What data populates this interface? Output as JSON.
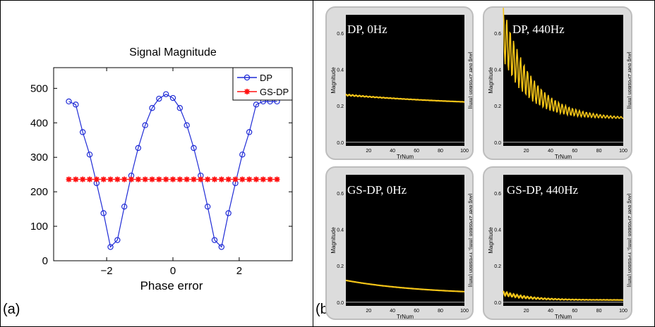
{
  "panel_labels": {
    "a": "(a)",
    "b": "(b)"
  },
  "chart_data": [
    {
      "type": "line",
      "title": "Signal Magnitude",
      "xlabel": "Phase error",
      "ylabel": "",
      "xlim": [
        -3.6,
        3.6
      ],
      "ylim": [
        0,
        560
      ],
      "xticks": [
        -2,
        0,
        2
      ],
      "yticks": [
        0,
        100,
        200,
        300,
        400,
        500
      ],
      "grid": false,
      "legend": "top-right",
      "series": [
        {
          "name": "DP",
          "color": "#1f2bd6",
          "marker": "circle",
          "x": [
            -3.1416,
            -2.9322,
            -2.7227,
            -2.5133,
            -2.3038,
            -2.0944,
            -1.885,
            -1.6755,
            -1.4661,
            -1.2566,
            -1.0472,
            -0.8378,
            -0.6283,
            -0.4189,
            -0.2094,
            0,
            0.2094,
            0.4189,
            0.6283,
            0.8378,
            1.0472,
            1.2566,
            1.4661,
            1.6755,
            1.885,
            2.0944,
            2.3038,
            2.5133,
            2.7227,
            2.9322,
            3.1416
          ],
          "y": [
            462,
            453,
            373,
            308,
            225,
            138,
            40,
            60,
            157,
            247,
            327,
            393,
            443,
            470,
            483,
            472,
            443,
            393,
            327,
            247,
            157,
            60,
            40,
            138,
            225,
            308,
            373,
            453,
            462,
            462,
            462
          ]
        },
        {
          "name": "GS-DP",
          "color": "#ff1010",
          "marker": "star",
          "x": [
            -3.1416,
            -2.9322,
            -2.7227,
            -2.5133,
            -2.3038,
            -2.0944,
            -1.885,
            -1.6755,
            -1.4661,
            -1.2566,
            -1.0472,
            -0.8378,
            -0.6283,
            -0.4189,
            -0.2094,
            0,
            0.2094,
            0.4189,
            0.6283,
            0.8378,
            1.0472,
            1.2566,
            1.4661,
            1.6755,
            1.885,
            2.0944,
            2.3038,
            2.5133,
            2.7227,
            2.9322,
            3.1416
          ],
          "y": [
            236,
            236,
            236,
            236,
            236,
            236,
            236,
            236,
            236,
            236,
            236,
            236,
            236,
            236,
            236,
            236,
            236,
            236,
            236,
            236,
            236,
            236,
            236,
            236,
            236,
            236,
            236,
            236,
            236,
            236,
            236
          ]
        }
      ]
    },
    {
      "type": "line",
      "title": "DP, 0Hz",
      "xlabel": "TrNum",
      "ylabel": "Magnitude",
      "ylabel2": "[Avg over ZPosition (mm)]",
      "xlim": [
        1,
        100
      ],
      "ylim": [
        -0.02,
        0.7
      ],
      "xticks": [
        20,
        40,
        60,
        80,
        100
      ],
      "yticks": [
        0,
        0.2,
        0.4,
        0.6
      ],
      "ytick_labels": [
        "0.0",
        "0.2",
        "0.4",
        "0.6"
      ],
      "line_color": "#f5c518",
      "series": [
        {
          "name": "DP, 0Hz",
          "start": 0.26,
          "end": 0.19,
          "ripple": 0.004,
          "decay": 0.008
        }
      ]
    },
    {
      "type": "line",
      "title": "DP, 440Hz",
      "xlabel": "TrNum",
      "ylabel": "Magnitude",
      "ylabel2": "[Avg over ZPosition (mm)]",
      "xlim": [
        1,
        100
      ],
      "ylim": [
        -0.02,
        0.7
      ],
      "xticks": [
        20,
        40,
        60,
        80,
        100
      ],
      "yticks": [
        0,
        0.2,
        0.4,
        0.6
      ],
      "ytick_labels": [
        "0.0",
        "0.2",
        "0.4",
        "0.6"
      ],
      "line_color": "#f5c518",
      "series": [
        {
          "name": "DP, 440Hz",
          "start": 0.6,
          "end": 0.13,
          "ripple": 0.15,
          "decay": 0.045
        }
      ]
    },
    {
      "type": "line",
      "title": "GS-DP, 0Hz",
      "xlabel": "TrNum",
      "ylabel": "Magnitude",
      "ylabel2": "[Avg over ZPosition (mm), YPosition (mm)]",
      "xlim": [
        1,
        100
      ],
      "ylim": [
        -0.02,
        0.7
      ],
      "xticks": [
        20,
        40,
        60,
        80,
        100
      ],
      "yticks": [
        0,
        0.2,
        0.4,
        0.6
      ],
      "ytick_labels": [
        "0.0",
        "0.2",
        "0.4",
        "0.6"
      ],
      "line_color": "#f5c518",
      "series": [
        {
          "name": "GS-DP, 0Hz",
          "start": 0.12,
          "end": 0.04,
          "ripple": 0.0,
          "decay": 0.015
        }
      ]
    },
    {
      "type": "line",
      "title": "GS-DP, 440Hz",
      "xlabel": "TrNum",
      "ylabel": "Magnitude",
      "ylabel2": "[Avg over ZPosition (mm), YPosition (mm)]",
      "xlim": [
        1,
        100
      ],
      "ylim": [
        -0.02,
        0.7
      ],
      "xticks": [
        20,
        40,
        60,
        80,
        100
      ],
      "yticks": [
        0,
        0.2,
        0.4,
        0.6
      ],
      "ytick_labels": [
        "0.0",
        "0.2",
        "0.4",
        "0.6"
      ],
      "line_color": "#f5c518",
      "series": [
        {
          "name": "GS-DP, 440Hz",
          "start": 0.05,
          "end": 0.012,
          "ripple": 0.012,
          "decay": 0.05
        }
      ]
    }
  ]
}
